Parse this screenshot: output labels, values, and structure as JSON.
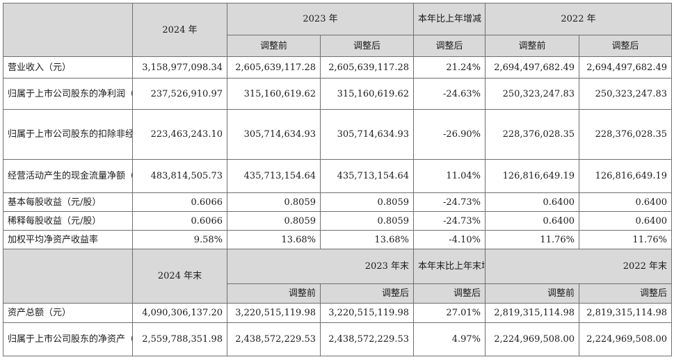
{
  "header1": {
    "y2024": "2024 年",
    "y2023": "2023 年",
    "change": "本年比上年增减",
    "y2022": "2022 年",
    "before": "调整前",
    "after": "调整后"
  },
  "rows1": [
    {
      "label": "营业收入（元）",
      "v2024": "3,158,977,098.34",
      "v2023b": "2,605,639,117.28",
      "v2023a": "2,605,639,117.28",
      "chg": "21.24%",
      "v2022b": "2,694,497,682.49",
      "v2022a": "2,694,497,682.49"
    },
    {
      "label": "归属于上市公司股东的净利润（元）",
      "v2024": "237,526,910.97",
      "v2023b": "315,160,619.62",
      "v2023a": "315,160,619.62",
      "chg": "-24.63%",
      "v2022b": "250,323,247.83",
      "v2022a": "250,323,247.83"
    },
    {
      "label": "归属于上市公司股东的扣除非经常性损益的净利润（元）",
      "v2024": "223,463,243.10",
      "v2023b": "305,714,634.93",
      "v2023a": "305,714,634.93",
      "chg": "-26.90%",
      "v2022b": "228,376,028.35",
      "v2022a": "228,376,028.35"
    },
    {
      "label": "经营活动产生的现金流量净额（元）",
      "v2024": "483,814,505.73",
      "v2023b": "435,713,154.64",
      "v2023a": "435,713,154.64",
      "chg": "11.04%",
      "v2022b": "126,816,649.19",
      "v2022a": "126,816,649.19"
    },
    {
      "label": "基本每股收益（元/股）",
      "v2024": "0.6066",
      "v2023b": "0.8059",
      "v2023a": "0.8059",
      "chg": "-24.73%",
      "v2022b": "0.6400",
      "v2022a": "0.6400"
    },
    {
      "label": "稀释每股收益（元/股）",
      "v2024": "0.6066",
      "v2023b": "0.8059",
      "v2023a": "0.8059",
      "chg": "-24.73%",
      "v2022b": "0.6400",
      "v2022a": "0.6400"
    },
    {
      "label": "加权平均净资产收益率",
      "v2024": "9.58%",
      "v2023b": "13.68%",
      "v2023a": "13.68%",
      "chg": "-4.10%",
      "v2022b": "11.76%",
      "v2022a": "11.76%"
    }
  ],
  "header2": {
    "y2024": "2024 年末",
    "y2023": "2023 年末",
    "change": "本年末比上年末增减",
    "y2022": "2022 年末",
    "before": "调整前",
    "after": "调整后"
  },
  "rows2": [
    {
      "label": "资产总额（元）",
      "v2024": "4,090,306,137.20",
      "v2023b": "3,220,515,119.98",
      "v2023a": "3,220,515,119.98",
      "chg": "27.01%",
      "v2022b": "2,819,315,114.98",
      "v2022a": "2,819,315,114.98"
    },
    {
      "label": "归属于上市公司股东的净资产（元）",
      "v2024": "2,559,788,351.98",
      "v2023b": "2,438,572,229.53",
      "v2023a": "2,438,572,229.53",
      "chg": "4.97%",
      "v2022b": "2,224,969,508.00",
      "v2022a": "2,224,969,508.00"
    }
  ]
}
